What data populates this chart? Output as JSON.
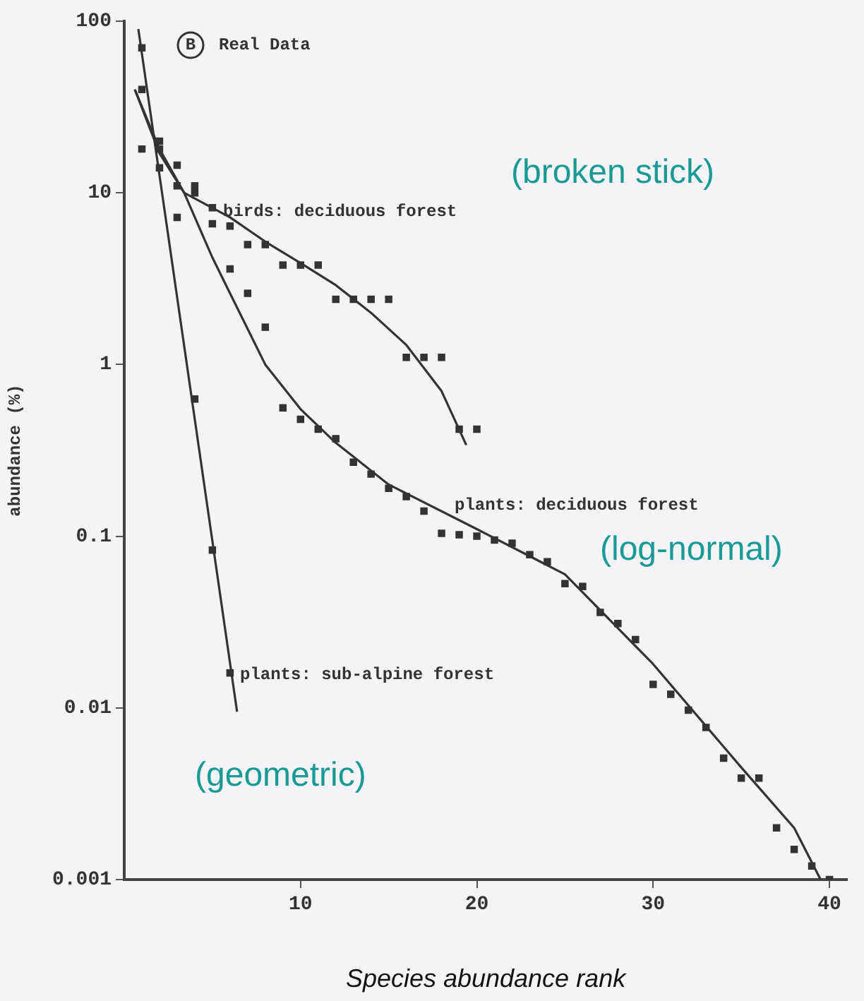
{
  "chart_data": {
    "type": "scatter",
    "xlabel": "Species abundance rank",
    "ylabel": "abundance (%)",
    "log": "y",
    "grid": false,
    "legend": false,
    "marker": "square",
    "xlim": [
      0,
      41
    ],
    "xticks": [
      10,
      20,
      30,
      40
    ],
    "ylim": [
      0.001,
      100
    ],
    "yticks": [
      {
        "value": 0.001,
        "label": "0.001"
      },
      {
        "value": 0.01,
        "label": "0.01"
      },
      {
        "value": 0.1,
        "label": "0.1"
      },
      1,
      10,
      100
    ],
    "series": [
      {
        "name": "plants: sub-alpine forest",
        "color": "#333333",
        "x": [
          1,
          2,
          3,
          4,
          5,
          6
        ],
        "values": [
          70,
          20,
          7.2,
          0.63,
          0.083,
          0.016
        ]
      },
      {
        "name": "birds: deciduous forest",
        "color": "#333333",
        "x": [
          1,
          2,
          3,
          4,
          5,
          6,
          7,
          8,
          9,
          10,
          11,
          12,
          13,
          14,
          15,
          16,
          17,
          18,
          19,
          20
        ],
        "values": [
          18,
          14,
          14.5,
          11,
          8.2,
          6.4,
          5,
          5,
          3.8,
          3.8,
          3.8,
          2.4,
          2.4,
          2.4,
          2.4,
          1.1,
          1.1,
          1.1,
          0.42,
          0.42
        ]
      },
      {
        "name": "plants: deciduous forest",
        "color": "#333333",
        "x": [
          1,
          2,
          3,
          4,
          5,
          6,
          7,
          8,
          9,
          10,
          11,
          12,
          13,
          14,
          15,
          16,
          17,
          18,
          19,
          20,
          21,
          22,
          23,
          24,
          25,
          26,
          27,
          28,
          29,
          30,
          31,
          32,
          33,
          34,
          35,
          36,
          37,
          38,
          39,
          40
        ],
        "values": [
          40,
          18,
          11,
          10,
          6.6,
          3.6,
          2.6,
          1.65,
          0.56,
          0.48,
          0.42,
          0.37,
          0.27,
          0.23,
          0.19,
          0.17,
          0.14,
          0.104,
          0.102,
          0.1,
          0.095,
          0.091,
          0.078,
          0.071,
          0.053,
          0.051,
          0.036,
          0.031,
          0.025,
          0.0137,
          0.012,
          0.0097,
          0.0077,
          0.0051,
          0.0039,
          0.0039,
          0.002,
          0.0015,
          0.0012,
          0.001
        ]
      },
      {
        "type": "line",
        "color": "#333333",
        "marker": "none",
        "x": [
          0.8,
          6.4
        ],
        "values": [
          90,
          0.0095
        ]
      },
      {
        "type": "line",
        "color": "#333333",
        "marker": "none",
        "x": [
          0.6,
          2,
          3.4,
          6,
          8,
          10,
          12,
          14,
          16,
          18,
          19.4
        ],
        "values": [
          40,
          17,
          10,
          7.2,
          5.2,
          3.9,
          2.9,
          2,
          1.3,
          0.7,
          0.34
        ]
      },
      {
        "type": "line",
        "color": "#333333",
        "marker": "none",
        "x": [
          0.6,
          2,
          3.4,
          5,
          6,
          8,
          10,
          12,
          15,
          20,
          25,
          30,
          35,
          38,
          39.5
        ],
        "values": [
          40,
          18,
          10,
          4.2,
          2.6,
          1,
          0.55,
          0.35,
          0.2,
          0.11,
          0.06,
          0.018,
          0.0045,
          0.002,
          0.001
        ]
      }
    ],
    "title": "Real Data",
    "annotations": [
      "B",
      "(broken stick)",
      "(log-normal)",
      "(geometric)"
    ]
  }
}
